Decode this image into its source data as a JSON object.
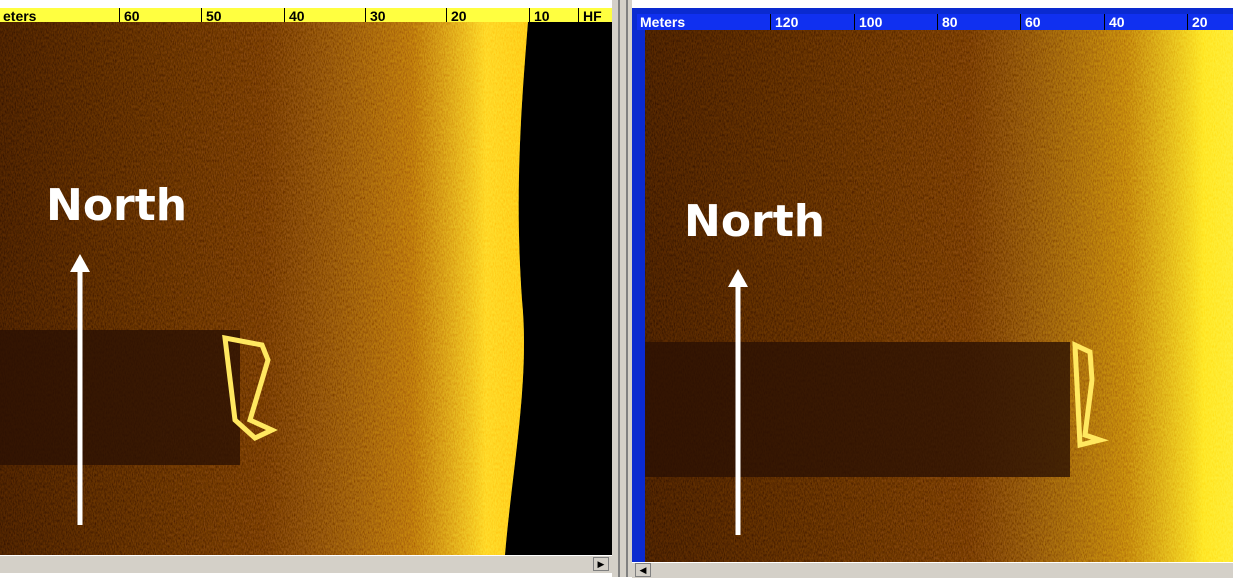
{
  "left_panel": {
    "ruler": {
      "labels": [
        "eters",
        "60",
        "50",
        "40",
        "30",
        "20",
        "10",
        "HF"
      ]
    },
    "overlay_label": "North"
  },
  "right_panel": {
    "ruler": {
      "labels": [
        "Meters",
        "120",
        "100",
        "80",
        "60",
        "40",
        "20"
      ]
    },
    "overlay_label": "North"
  }
}
